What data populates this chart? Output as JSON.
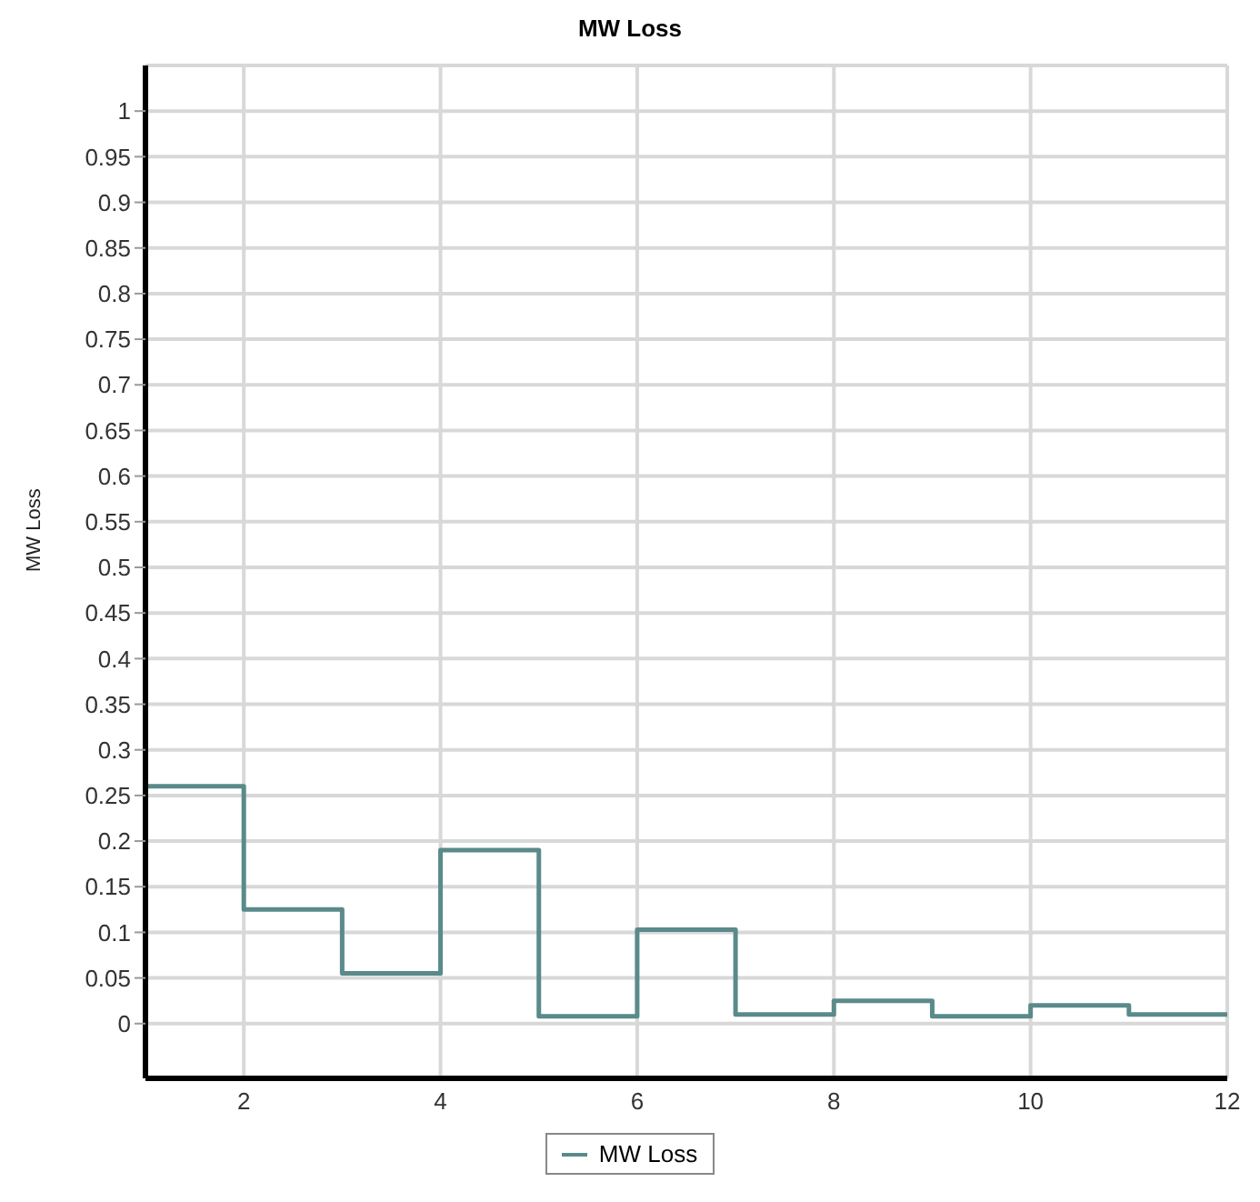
{
  "chart_data": {
    "type": "step",
    "title": "MW Loss",
    "ylabel": "MW Loss",
    "x": [
      1,
      2,
      3,
      4,
      5,
      6,
      7,
      8,
      9,
      10,
      11,
      12
    ],
    "series": [
      {
        "name": "MW Loss",
        "color": "#5a8a8a",
        "values": [
          0.26,
          0.125,
          0.055,
          0.19,
          0.008,
          0.103,
          0.01,
          0.025,
          0.008,
          0.02,
          0.01,
          0.01
        ]
      }
    ],
    "xlim": [
      1,
      12
    ],
    "xticks": [
      2,
      4,
      6,
      8,
      10,
      12
    ],
    "ylim": [
      -0.06,
      1.05
    ],
    "yticks": [
      0,
      0.05,
      0.1,
      0.15,
      0.2,
      0.25,
      0.3,
      0.35,
      0.4,
      0.45,
      0.5,
      0.55,
      0.6,
      0.65,
      0.7,
      0.75,
      0.8,
      0.85,
      0.9,
      0.95,
      1
    ],
    "grid": true,
    "legend": "bottom",
    "marker": "none",
    "line_style": "solid"
  }
}
